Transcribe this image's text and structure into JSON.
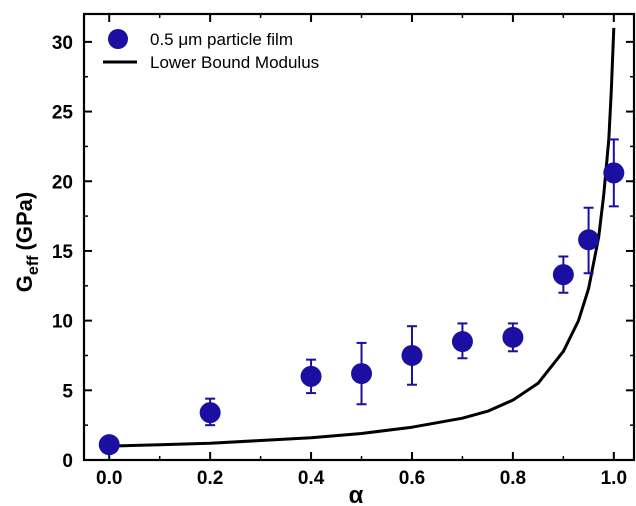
{
  "chart_data": {
    "type": "scatter",
    "xlabel": "α",
    "ylabel": {
      "main": "G",
      "sub": "eff",
      "unit": "(GPa)"
    },
    "xlim": [
      -0.05,
      1.04
    ],
    "ylim": [
      0,
      32
    ],
    "x_ticks": [
      0.0,
      0.2,
      0.4,
      0.6,
      0.8,
      1.0
    ],
    "x_tick_labels": [
      "0.0",
      "0.2",
      "0.4",
      "0.6",
      "0.8",
      "1.0"
    ],
    "y_ticks": [
      0,
      5,
      10,
      15,
      20,
      25,
      30
    ],
    "y_tick_labels": [
      "0",
      "5",
      "10",
      "15",
      "20",
      "25",
      "30"
    ],
    "grid": false,
    "legend": {
      "placement": "top-left",
      "entries": [
        {
          "label": "0.5 μm particle film",
          "marker": "circle"
        },
        {
          "label": "Lower Bound Modulus",
          "marker": "line"
        }
      ]
    },
    "series": [
      {
        "name": "0.5 μm particle film",
        "kind": "scatter",
        "color": "#1a0fa0",
        "points": [
          {
            "x": 0.0,
            "y": 1.1,
            "err_low": null,
            "err_high": null
          },
          {
            "x": 0.2,
            "y": 3.4,
            "err_low": 2.5,
            "err_high": 4.4
          },
          {
            "x": 0.4,
            "y": 6.0,
            "err_low": 4.8,
            "err_high": 7.2
          },
          {
            "x": 0.5,
            "y": 6.2,
            "err_low": 4.0,
            "err_high": 8.4
          },
          {
            "x": 0.6,
            "y": 7.5,
            "err_low": 5.4,
            "err_high": 9.6
          },
          {
            "x": 0.7,
            "y": 8.5,
            "err_low": 7.3,
            "err_high": 9.8
          },
          {
            "x": 0.8,
            "y": 8.8,
            "err_low": 7.8,
            "err_high": 9.8
          },
          {
            "x": 0.9,
            "y": 13.3,
            "err_low": 12.0,
            "err_high": 14.6
          },
          {
            "x": 0.95,
            "y": 15.8,
            "err_low": 13.4,
            "err_high": 18.1
          },
          {
            "x": 1.0,
            "y": 20.6,
            "err_low": 18.2,
            "err_high": 23.0
          }
        ]
      },
      {
        "name": "Lower Bound Modulus",
        "kind": "line",
        "color": "#000000",
        "x": [
          0.0,
          0.1,
          0.2,
          0.3,
          0.4,
          0.5,
          0.6,
          0.7,
          0.75,
          0.8,
          0.85,
          0.9,
          0.93,
          0.95,
          0.97,
          0.98,
          0.99,
          0.995,
          1.0
        ],
        "y": [
          1.0,
          1.1,
          1.2,
          1.4,
          1.6,
          1.9,
          2.35,
          3.0,
          3.5,
          4.3,
          5.5,
          7.8,
          10.0,
          12.3,
          16.0,
          19.0,
          23.0,
          26.5,
          31.0
        ]
      }
    ]
  }
}
